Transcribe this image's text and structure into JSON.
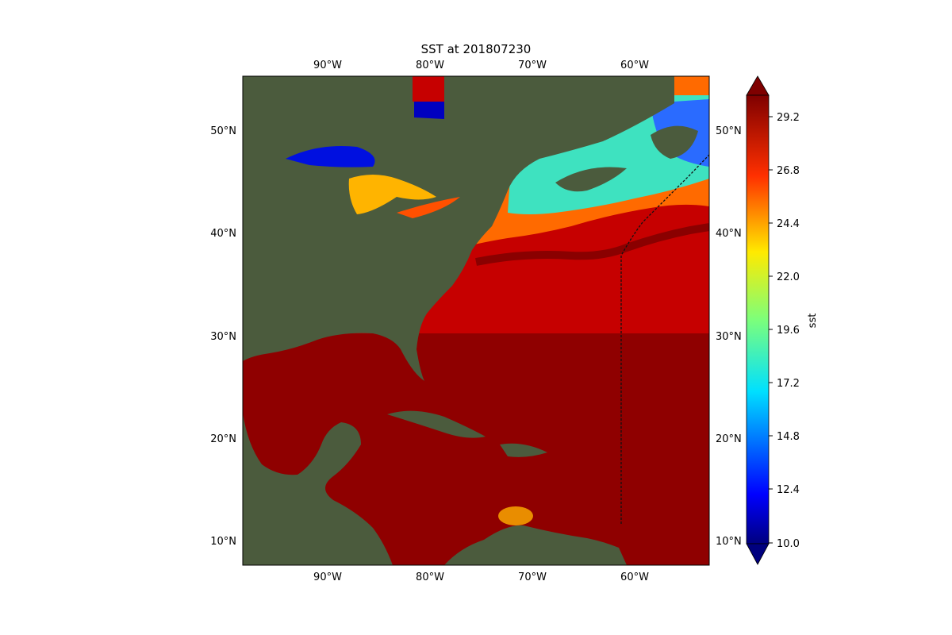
{
  "figure": {
    "title": "SST at 201807230"
  },
  "map": {
    "lon_ticks": [
      "90°W",
      "80°W",
      "70°W",
      "60°W"
    ],
    "lat_ticks": [
      "50°N",
      "40°N",
      "30°N",
      "20°N",
      "10°N"
    ]
  },
  "colorbar": {
    "label": "sst",
    "ticks": [
      "29.2",
      "26.8",
      "24.4",
      "22.0",
      "19.6",
      "17.2",
      "14.8",
      "12.4",
      "10.0"
    ],
    "colormap": "jet",
    "extend": "both"
  },
  "colors": {
    "land": "#4a5a3c",
    "ocean_warm": "#8a0000",
    "ocean_mid": "#d61a00",
    "border": "#000000",
    "track": "#111111"
  }
}
